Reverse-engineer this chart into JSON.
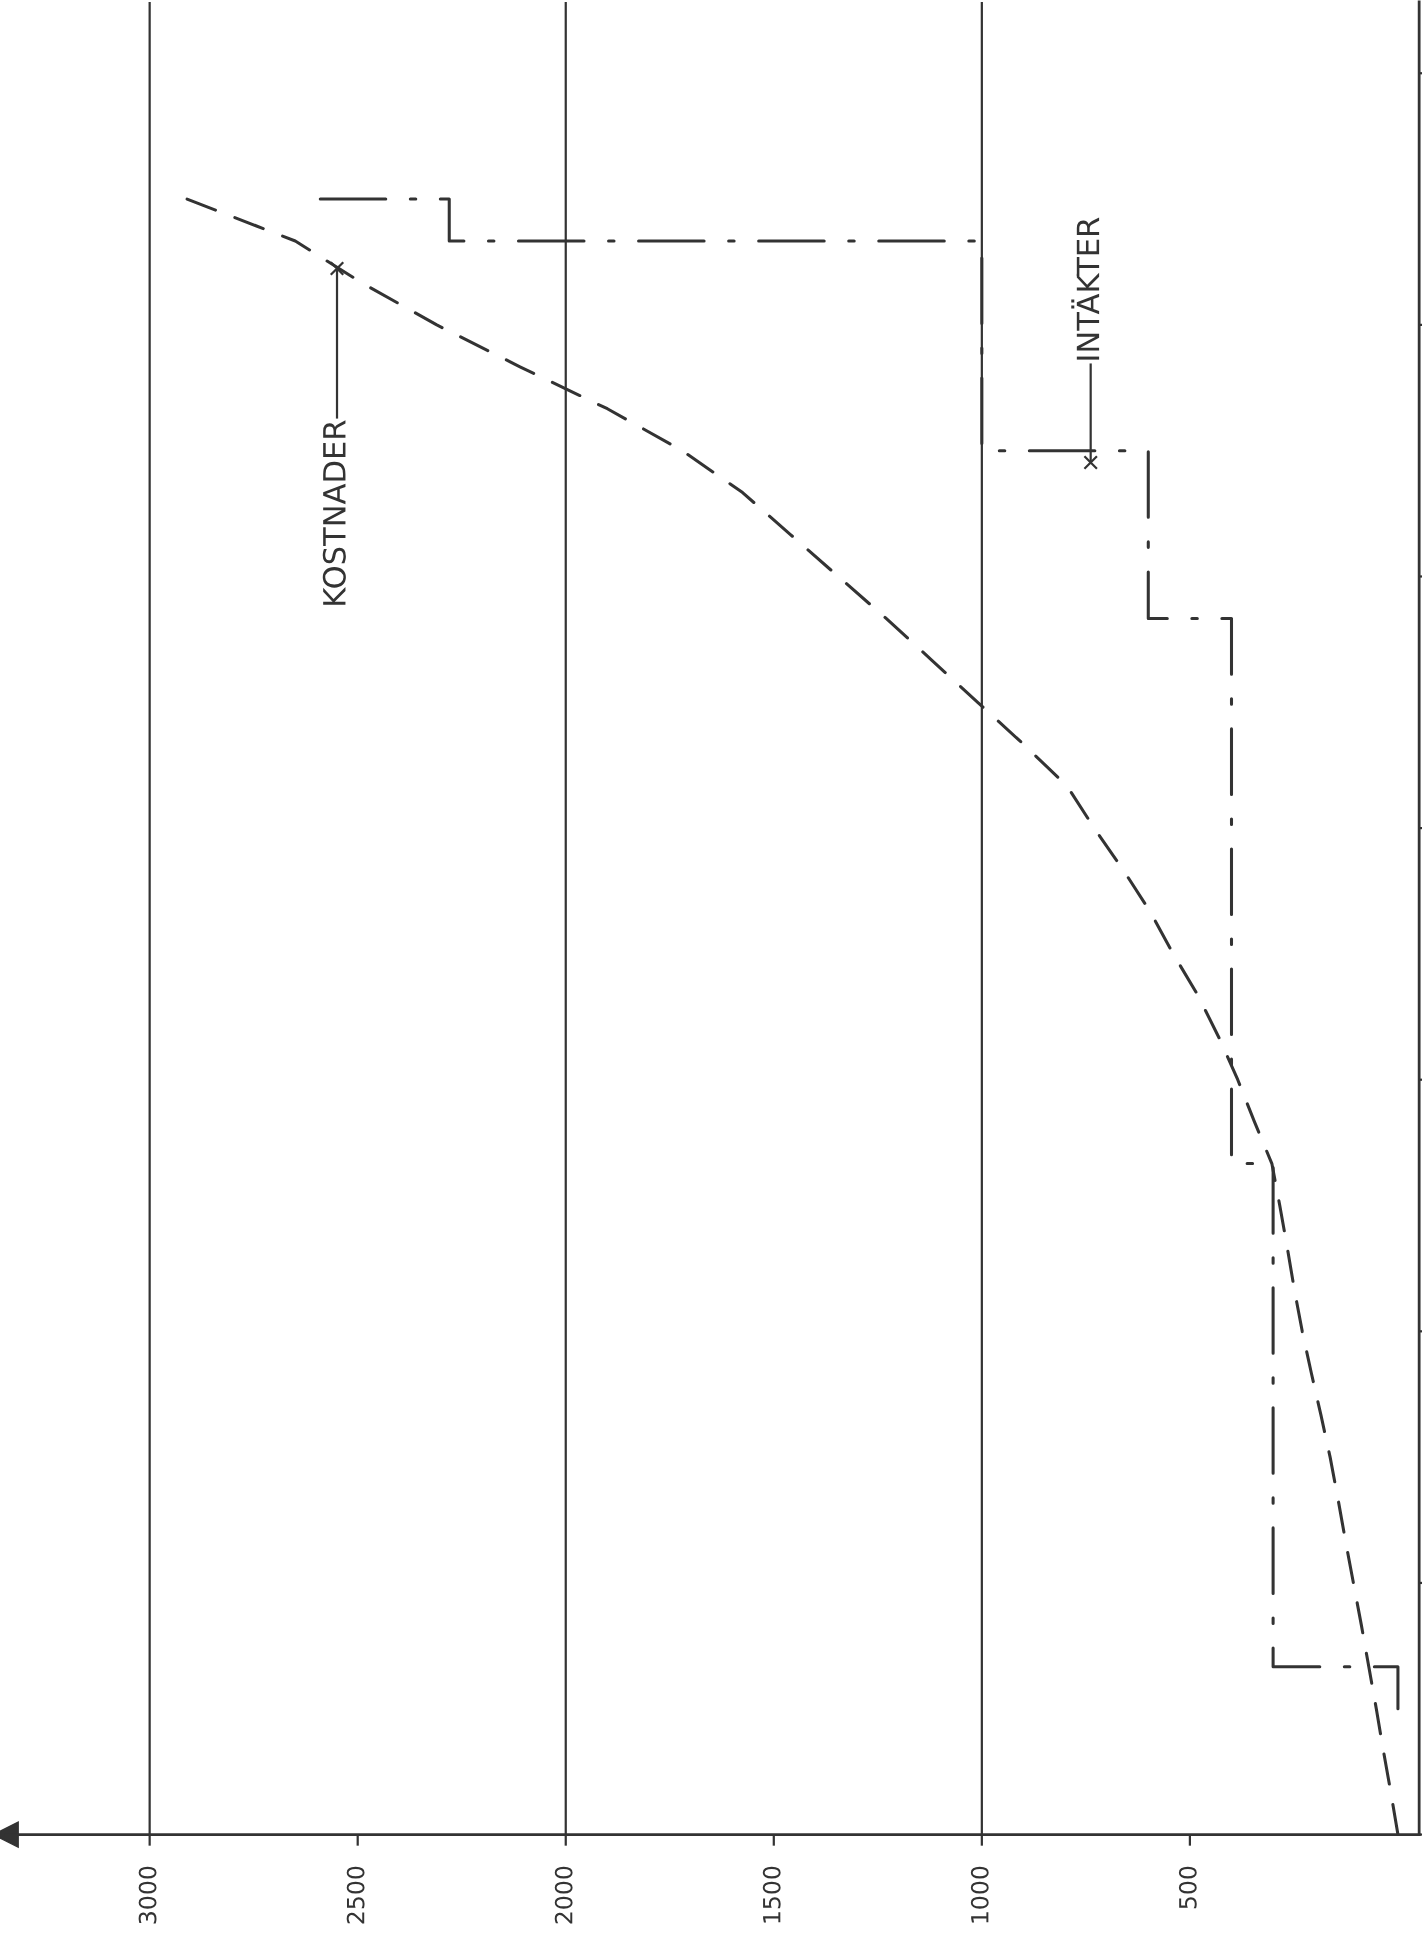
{
  "chart_data": {
    "type": "line",
    "orientation": "horizontal",
    "categories": [
      null,
      null,
      null,
      null,
      null,
      null,
      null,
      null,
      null,
      null,
      null,
      null,
      null,
      null,
      null,
      null,
      null,
      null,
      null,
      null,
      null,
      null,
      null,
      null,
      null,
      null,
      null,
      null,
      null,
      null,
      null,
      null,
      null,
      null,
      null,
      null,
      null,
      null,
      null,
      null,
      null,
      null,
      null,
      null
    ],
    "xlim": [
      3346,
      -51
    ],
    "xticks": [
      3000,
      2500,
      2000,
      1500,
      1000,
      500
    ],
    "tick_labels": "x",
    "series": [
      {
        "color": "#333333",
        "line_style": "dashed",
        "values": [
          null,
          null,
          null,
          null,
          2910,
          2650,
          2490,
          2310,
          2110,
          1900,
          1720,
          1575,
          1460,
          1345,
          1230,
          1120,
          1010,
          900,
          795,
          730,
          660,
          595,
          540,
          480,
          430,
          385,
          345,
          303,
          284,
          266,
          249,
          230,
          208,
          185,
          163,
          144,
          126,
          107,
          88,
          70,
          52,
          35,
          17,
          0
        ]
      },
      {
        "type": "step",
        "color": "#333333",
        "line_style": "dashdot",
        "values": [
          null,
          null,
          null,
          null,
          2590,
          2280,
          1000,
          1000,
          1000,
          1000,
          1000,
          600,
          600,
          600,
          600,
          400,
          400,
          400,
          400,
          400,
          400,
          400,
          400,
          400,
          400,
          400,
          400,
          400,
          300,
          300,
          300,
          300,
          300,
          300,
          300,
          300,
          300,
          300,
          300,
          300,
          0,
          null,
          null,
          null
        ]
      }
    ],
    "ref_lines": [
      {
        "axis": "x",
        "value": 1000,
        "color": "#333333"
      },
      {
        "axis": "x",
        "value": 2000,
        "color": "#333333"
      },
      {
        "axis": "x",
        "value": 3000,
        "color": "#333333"
      }
    ],
    "annotations": [
      "KOSTNADER",
      "INTÄKTER"
    ]
  }
}
